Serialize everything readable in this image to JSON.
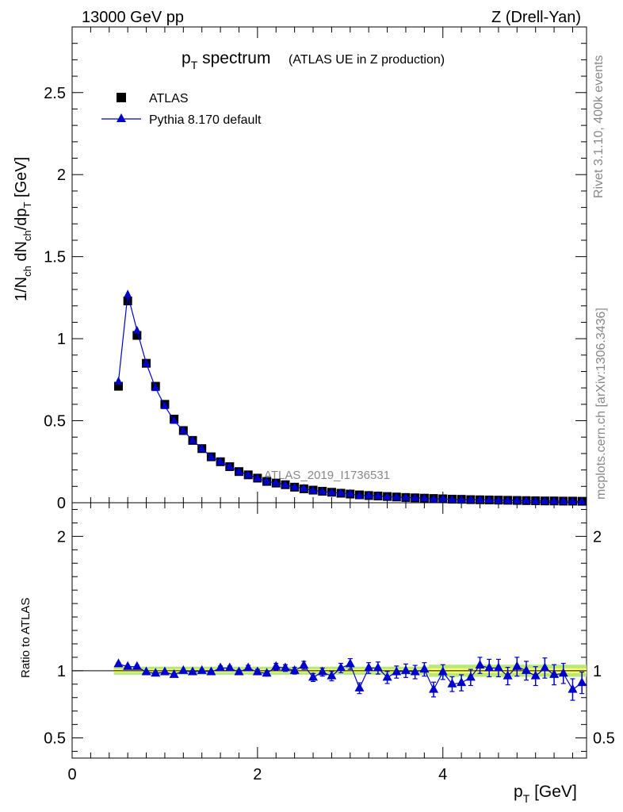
{
  "header": {
    "left": "13000 GeV pp",
    "right": "Z (Drell-Yan)"
  },
  "side": {
    "rivet": "Rivet 3.1.10,  400k events",
    "mcplots": "mcplots.cern.ch [arXiv:1306.3436]"
  },
  "title": {
    "main_p": "p",
    "main_sub": "T",
    "main_rest": " spectrum",
    "suffix": "(ATLAS UE in Z production)"
  },
  "watermark": "ATLAS_2019_I1736531",
  "axis": {
    "ylabel_main": [
      "1/N",
      "ch",
      " dN",
      "ch",
      "/dp",
      "T",
      " [GeV]"
    ],
    "ylabel_ratio": "Ratio to ATLAS",
    "xlabel_p": "p",
    "xlabel_sub": "T",
    "xlabel_rest": " [GeV]"
  },
  "legend": {
    "data_label": "ATLAS",
    "mc_label": "Pythia 8.170 default"
  },
  "colors": {
    "data": "#000000",
    "mc": "#0000cc",
    "band_inner": "#ffff66",
    "band_outer": "#b6e87a"
  },
  "chart_data": [
    {
      "type": "scatter",
      "panel": "main",
      "xlim": [
        0,
        5.55
      ],
      "ylim": [
        0,
        2.9
      ],
      "yticks": [
        0.5,
        1,
        1.5,
        2,
        2.5
      ],
      "ytick_labels": [
        "0",
        "0.5",
        "1",
        "1.5",
        "2",
        "2.5"
      ],
      "x": [
        0.5,
        0.6,
        0.7,
        0.8,
        0.9,
        1.0,
        1.1,
        1.2,
        1.3,
        1.4,
        1.5,
        1.6,
        1.7,
        1.8,
        1.9,
        2.0,
        2.1,
        2.2,
        2.3,
        2.4,
        2.5,
        2.6,
        2.7,
        2.8,
        2.9,
        3.0,
        3.1,
        3.2,
        3.3,
        3.4,
        3.5,
        3.6,
        3.7,
        3.8,
        3.9,
        4.0,
        4.1,
        4.2,
        4.3,
        4.4,
        4.5,
        4.6,
        4.7,
        4.8,
        4.9,
        5.0,
        5.1,
        5.2,
        5.3,
        5.4,
        5.5
      ],
      "series": [
        {
          "name": "ATLAS",
          "values": [
            0.71,
            1.23,
            1.02,
            0.85,
            0.71,
            0.6,
            0.51,
            0.44,
            0.38,
            0.33,
            0.28,
            0.25,
            0.22,
            0.19,
            0.17,
            0.15,
            0.13,
            0.12,
            0.11,
            0.095,
            0.085,
            0.077,
            0.07,
            0.064,
            0.058,
            0.053,
            0.048,
            0.044,
            0.041,
            0.038,
            0.035,
            0.032,
            0.03,
            0.028,
            0.026,
            0.024,
            0.022,
            0.021,
            0.019,
            0.018,
            0.017,
            0.016,
            0.015,
            0.014,
            0.013,
            0.012,
            0.011,
            0.011,
            0.01,
            0.01,
            0.009
          ]
        },
        {
          "name": "Pythia 8.170 default",
          "values": [
            0.74,
            1.27,
            1.05,
            0.85,
            0.7,
            0.59,
            0.5,
            0.44,
            0.38,
            0.33,
            0.28,
            0.25,
            0.22,
            0.19,
            0.17,
            0.15,
            0.13,
            0.12,
            0.11,
            0.095,
            0.087,
            0.074,
            0.069,
            0.062,
            0.059,
            0.056,
            0.042,
            0.045,
            0.042,
            0.036,
            0.035,
            0.032,
            0.03,
            0.028,
            0.022,
            0.024,
            0.02,
            0.019,
            0.018,
            0.019,
            0.017,
            0.016,
            0.014,
            0.014,
            0.013,
            0.011,
            0.011,
            0.01,
            0.01,
            0.009,
            0.008
          ]
        }
      ]
    },
    {
      "type": "scatter",
      "panel": "ratio",
      "xlim": [
        0,
        5.55
      ],
      "ylim": [
        0.35,
        2.25
      ],
      "yticks": [
        0.5,
        1,
        2
      ],
      "ytick_labels": [
        "0.5",
        "1",
        "2"
      ],
      "xticks": [
        0,
        2,
        4
      ],
      "xtick_labels": [
        "0",
        "2",
        "4"
      ],
      "x": [
        0.5,
        0.6,
        0.7,
        0.8,
        0.9,
        1.0,
        1.1,
        1.2,
        1.3,
        1.4,
        1.5,
        1.6,
        1.7,
        1.8,
        1.9,
        2.0,
        2.1,
        2.2,
        2.3,
        2.4,
        2.5,
        2.6,
        2.7,
        2.8,
        2.9,
        3.0,
        3.1,
        3.2,
        3.3,
        3.4,
        3.5,
        3.6,
        3.7,
        3.8,
        3.9,
        4.0,
        4.1,
        4.2,
        4.3,
        4.4,
        4.5,
        4.6,
        4.7,
        4.8,
        4.9,
        5.0,
        5.1,
        5.2,
        5.3,
        5.4,
        5.5
      ],
      "series": [
        {
          "name": "Pythia 8.170 default",
          "values": [
            1.05,
            1.03,
            1.03,
            0.99,
            0.98,
            0.99,
            0.97,
            1.0,
            0.99,
            1.0,
            0.99,
            1.02,
            1.02,
            0.99,
            1.02,
            0.99,
            0.98,
            1.03,
            1.02,
            1.0,
            1.04,
            0.95,
            0.99,
            0.96,
            1.02,
            1.05,
            0.87,
            1.02,
            1.02,
            0.95,
            0.99,
            1.0,
            0.99,
            1.01,
            0.86,
            0.99,
            0.9,
            0.91,
            0.95,
            1.04,
            1.02,
            1.02,
            0.96,
            1.03,
            1.0,
            0.96,
            1.02,
            0.97,
            0.98,
            0.86,
            0.91
          ],
          "errors": [
            0.01,
            0.01,
            0.01,
            0.01,
            0.01,
            0.01,
            0.01,
            0.01,
            0.01,
            0.01,
            0.01,
            0.015,
            0.015,
            0.015,
            0.02,
            0.02,
            0.02,
            0.025,
            0.025,
            0.025,
            0.03,
            0.03,
            0.03,
            0.035,
            0.035,
            0.04,
            0.04,
            0.04,
            0.045,
            0.045,
            0.045,
            0.05,
            0.05,
            0.05,
            0.055,
            0.055,
            0.055,
            0.06,
            0.06,
            0.06,
            0.065,
            0.065,
            0.065,
            0.07,
            0.07,
            0.07,
            0.075,
            0.075,
            0.075,
            0.08,
            0.08
          ]
        }
      ],
      "band_half_width": [
        0.02,
        0.02,
        0.02,
        0.02,
        0.02,
        0.02,
        0.02,
        0.02,
        0.02,
        0.02,
        0.02,
        0.02,
        0.02,
        0.02,
        0.02,
        0.02,
        0.02,
        0.02,
        0.02,
        0.02,
        0.02,
        0.02,
        0.02,
        0.02,
        0.02,
        0.02,
        0.02,
        0.02,
        0.02,
        0.02,
        0.02,
        0.02,
        0.02,
        0.02,
        0.03,
        0.03,
        0.03,
        0.03,
        0.03,
        0.03,
        0.03,
        0.03,
        0.03,
        0.03,
        0.03,
        0.03,
        0.03,
        0.03,
        0.03,
        0.03,
        0.03
      ]
    }
  ]
}
